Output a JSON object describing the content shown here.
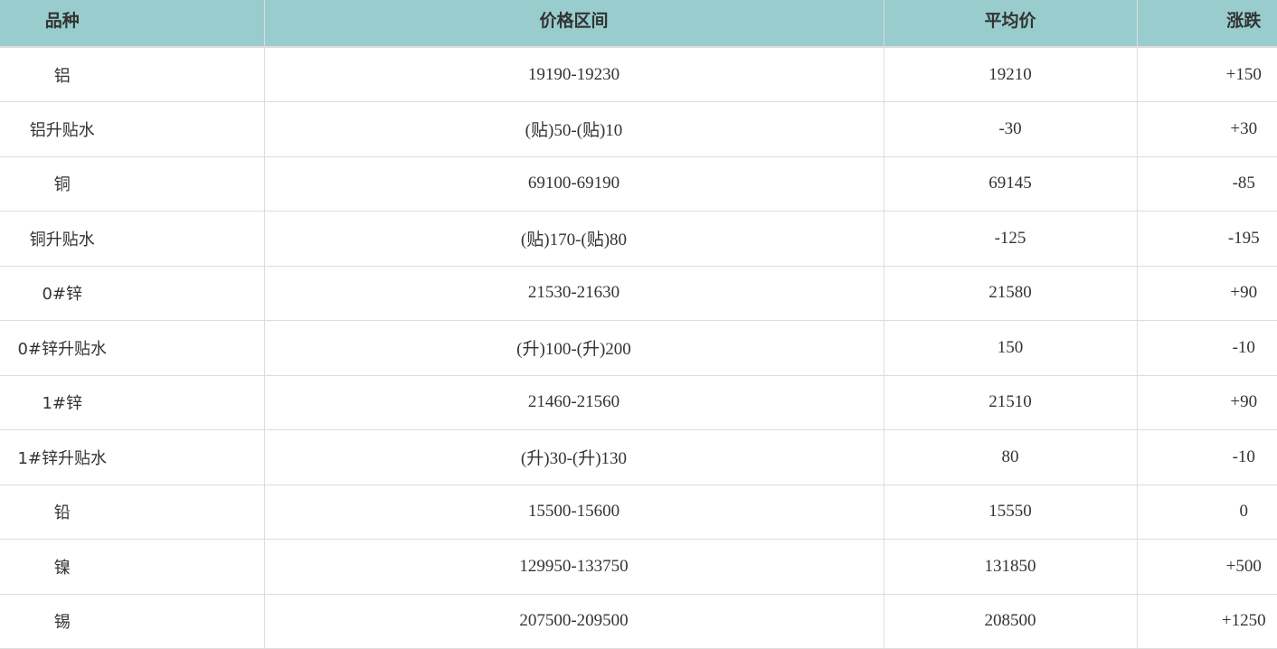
{
  "header": {
    "variety": "品种",
    "range": "价格区间",
    "avg": "平均价",
    "change": "涨跌"
  },
  "colors": {
    "header_bg": "#99cccc",
    "border": "#dddddd",
    "text": "#333333"
  },
  "rows": [
    {
      "variety": "铝",
      "range": "19190-19230",
      "avg": "19210",
      "change": "+150"
    },
    {
      "variety": "铝升贴水",
      "range": "(贴)50-(贴)10",
      "avg": "-30",
      "change": "+30"
    },
    {
      "variety": "铜",
      "range": "69100-69190",
      "avg": "69145",
      "change": "-85"
    },
    {
      "variety": "铜升贴水",
      "range": "(贴)170-(贴)80",
      "avg": "-125",
      "change": "-195"
    },
    {
      "variety": "0#锌",
      "range": "21530-21630",
      "avg": "21580",
      "change": "+90"
    },
    {
      "variety": "0#锌升贴水",
      "range": "(升)100-(升)200",
      "avg": "150",
      "change": "-10"
    },
    {
      "variety": "1#锌",
      "range": "21460-21560",
      "avg": "21510",
      "change": "+90"
    },
    {
      "variety": "1#锌升贴水",
      "range": "(升)30-(升)130",
      "avg": "80",
      "change": "-10"
    },
    {
      "variety": "铅",
      "range": "15500-15600",
      "avg": "15550",
      "change": "0"
    },
    {
      "variety": "镍",
      "range": "129950-133750",
      "avg": "131850",
      "change": "+500"
    },
    {
      "variety": "锡",
      "range": "207500-209500",
      "avg": "208500",
      "change": "+1250"
    }
  ]
}
